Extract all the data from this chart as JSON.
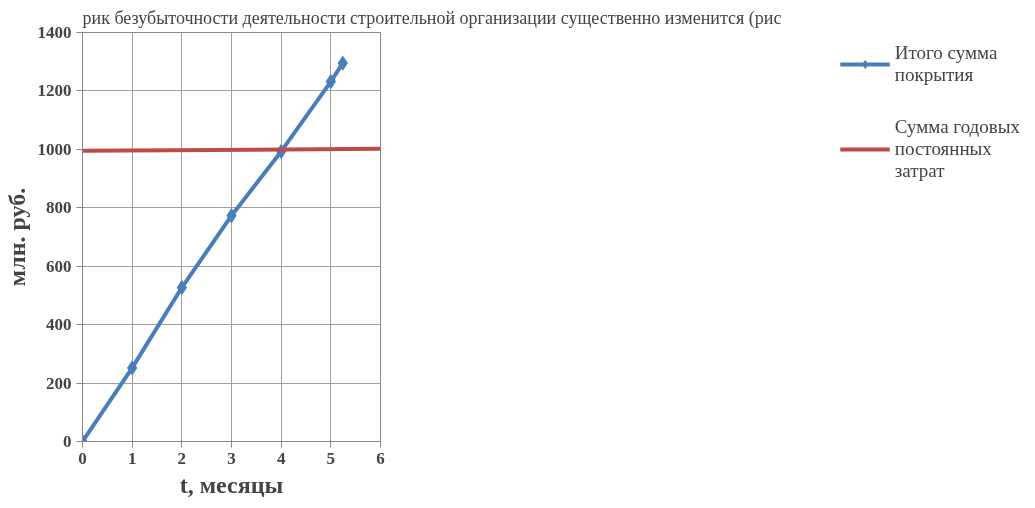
{
  "chart_data": {
    "type": "line",
    "xlabel": "t, месяцы",
    "ylabel": "млн. руб.",
    "annotations": [
      "рик безубыточности деятельности строительной организации существенно изменится (рис"
    ],
    "series": [
      {
        "name": "Итого сумма покрытия",
        "color": "#4a7ebb",
        "x": [
          0,
          1,
          2,
          3,
          4,
          5,
          5.24
        ],
        "values": [
          0,
          252,
          527,
          773,
          993,
          1232,
          1295
        ],
        "marker": "diamond"
      },
      {
        "name": "Сумма годовых постоянных затрат",
        "color": "#be4b48",
        "x": [
          0,
          6
        ],
        "values": [
          995,
          1002
        ],
        "marker": "none"
      }
    ],
    "xlim": [
      0,
      6
    ],
    "xticks": [
      0,
      1,
      2,
      3,
      4,
      5,
      6
    ],
    "ylim": [
      0,
      1400
    ],
    "yticks": [
      0,
      200,
      400,
      600,
      800,
      1000,
      1200,
      1400
    ],
    "grid": true,
    "legend": "right",
    "line_style": "solid"
  }
}
